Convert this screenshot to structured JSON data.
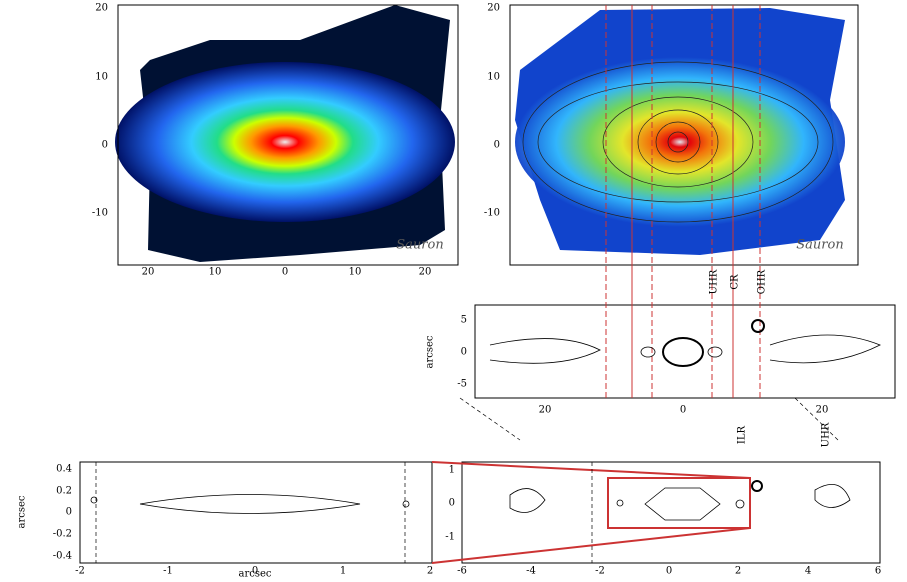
{
  "panels": [
    {
      "id": "flux",
      "yticks": [
        "20",
        "10",
        "0",
        "-10"
      ],
      "xticks": [
        "20",
        "10",
        "0",
        "10",
        "20"
      ],
      "logo": "Sauron"
    },
    {
      "id": "velocity",
      "yticks": [
        "20",
        "10",
        "0",
        "-10"
      ],
      "logo": "Sauron"
    },
    {
      "id": "mid",
      "yticks": [
        "5",
        "0",
        "-5"
      ],
      "xticks": [
        "20",
        "0",
        "20"
      ],
      "ylabel": "arcsec"
    },
    {
      "id": "bottom-left",
      "yticks": [
        "0.4",
        "0.2",
        "0",
        "-0.2",
        "-0.4"
      ],
      "xticks": [
        "-2",
        "-1",
        "0",
        "1",
        "2"
      ],
      "xlabel": "arcsec",
      "ylabel": "arcsec"
    },
    {
      "id": "bottom-right",
      "yticks": [
        "1",
        "0",
        "-1"
      ],
      "xticks": [
        "-6",
        "-4",
        "-2",
        "0",
        "2",
        "4",
        "6"
      ]
    }
  ],
  "resonance_labels": {
    "top": [
      "UHR",
      "CR",
      "OHR"
    ],
    "bottom": [
      "ILR",
      "UHR"
    ]
  }
}
